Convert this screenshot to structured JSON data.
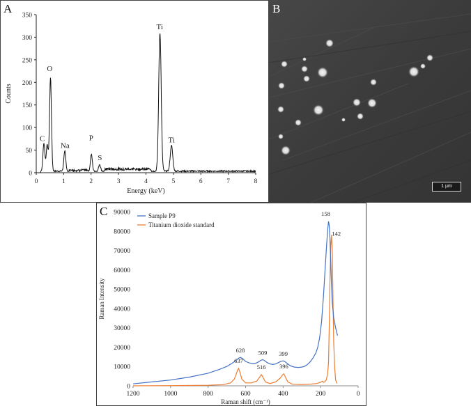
{
  "panels": {
    "a_label": "A",
    "b_label": "B",
    "c_label": "C"
  },
  "sem_image": {
    "scale_bar_label": "1 µm",
    "background_color": "#3a3a3a"
  },
  "chart_data": [
    {
      "type": "line",
      "panel": "A",
      "title": "",
      "xlabel": "Energy (keV)",
      "ylabel": "Counts",
      "xlim": [
        0,
        8
      ],
      "ylim": [
        0,
        350
      ],
      "xticks": [
        0,
        1,
        2,
        3,
        4,
        5,
        6,
        7,
        8
      ],
      "yticks": [
        0,
        50,
        100,
        150,
        200,
        250,
        300,
        350
      ],
      "grid": false,
      "line_color": "#111111",
      "peaks": [
        {
          "element": "C",
          "energy": 0.28,
          "counts": 65
        },
        {
          "element": "C",
          "energy": 0.4,
          "counts": 62
        },
        {
          "element": "O",
          "energy": 0.52,
          "counts": 210
        },
        {
          "element": "Na",
          "energy": 1.04,
          "counts": 48
        },
        {
          "element": "P",
          "energy": 2.01,
          "counts": 40
        },
        {
          "element": "S",
          "energy": 2.31,
          "counts": 18
        },
        {
          "element": "Ti",
          "energy": 4.51,
          "counts": 310
        },
        {
          "element": "Ti",
          "energy": 4.93,
          "counts": 60
        }
      ],
      "annotations": [
        {
          "text": "C",
          "x": 0.22,
          "y": 70
        },
        {
          "text": "O",
          "x": 0.49,
          "y": 225
        },
        {
          "text": "Na",
          "x": 1.05,
          "y": 55
        },
        {
          "text": "P",
          "x": 2.0,
          "y": 72
        },
        {
          "text": "S",
          "x": 2.32,
          "y": 28
        },
        {
          "text": "Ti",
          "x": 4.5,
          "y": 318
        },
        {
          "text": "Ti",
          "x": 4.93,
          "y": 67
        }
      ]
    },
    {
      "type": "line",
      "panel": "C",
      "title": "",
      "xlabel": "Raman shift (cm⁻¹)",
      "ylabel": "Raman Intensity",
      "xlim": [
        1200,
        0
      ],
      "ylim": [
        0,
        90000
      ],
      "xticks": [
        1200,
        1000,
        800,
        600,
        400,
        200,
        0
      ],
      "yticks": [
        0,
        10000,
        20000,
        30000,
        40000,
        50000,
        60000,
        70000,
        80000,
        90000
      ],
      "grid": false,
      "legend": "top-left",
      "series": [
        {
          "name": "Sample P9",
          "color": "#4472c4",
          "x": [
            1200,
            1100,
            1000,
            900,
            800,
            740,
            700,
            670,
            650,
            635,
            628,
            618,
            600,
            580,
            560,
            545,
            530,
            520,
            509,
            500,
            485,
            470,
            455,
            440,
            425,
            410,
            399,
            390,
            375,
            360,
            340,
            320,
            300,
            285,
            270,
            255,
            240,
            225,
            215,
            205,
            195,
            185,
            175,
            168,
            162,
            158,
            154,
            150,
            146,
            142,
            138,
            130,
            120,
            110
          ],
          "y": [
            1000,
            2000,
            3000,
            4500,
            6500,
            8500,
            10000,
            11800,
            13200,
            14400,
            14700,
            14200,
            12600,
            11800,
            11500,
            11700,
            12400,
            13100,
            13500,
            13100,
            12000,
            11300,
            11000,
            11300,
            12000,
            12700,
            12900,
            12500,
            11300,
            10300,
            9700,
            9500,
            9700,
            10100,
            11000,
            12500,
            14500,
            17000,
            20000,
            25000,
            33000,
            46000,
            62000,
            73000,
            81000,
            85000,
            83000,
            76000,
            64000,
            52000,
            43000,
            35000,
            30000,
            26000
          ]
        },
        {
          "name": "Titanium dioxide standard",
          "color": "#ed7d31",
          "x": [
            1200,
            1000,
            800,
            720,
            680,
            660,
            650,
            643,
            637,
            630,
            620,
            600,
            570,
            540,
            525,
            516,
            508,
            495,
            470,
            440,
            415,
            402,
            396,
            388,
            375,
            350,
            300,
            250,
            220,
            200,
            190,
            185,
            178,
            170,
            163,
            158,
            154,
            150,
            146,
            142,
            138,
            134,
            130,
            125,
            120,
            112
          ],
          "y": [
            0,
            100,
            300,
            600,
            1500,
            3500,
            6000,
            8000,
            9000,
            7000,
            3500,
            1500,
            1500,
            2500,
            4500,
            5800,
            4500,
            2000,
            1200,
            2000,
            4000,
            5800,
            6200,
            4500,
            2000,
            800,
            700,
            900,
            1200,
            1800,
            2400,
            1800,
            2100,
            3000,
            6000,
            12000,
            30000,
            55000,
            72000,
            78000,
            70000,
            45000,
            22000,
            9000,
            3000,
            1200
          ]
        }
      ],
      "peak_labels": [
        {
          "text": "628",
          "x": 628,
          "y": 14700,
          "series": "Sample P9"
        },
        {
          "text": "509",
          "x": 509,
          "y": 13500,
          "series": "Sample P9"
        },
        {
          "text": "399",
          "x": 399,
          "y": 12900,
          "series": "Sample P9"
        },
        {
          "text": "158",
          "x": 158,
          "y": 85000,
          "series": "Sample P9"
        },
        {
          "text": "637",
          "x": 637,
          "y": 9000,
          "series": "Titanium dioxide standard"
        },
        {
          "text": "516",
          "x": 516,
          "y": 5800,
          "series": "Titanium dioxide standard"
        },
        {
          "text": "396",
          "x": 396,
          "y": 6200,
          "series": "Titanium dioxide standard"
        },
        {
          "text": "142",
          "x": 142,
          "y": 78000,
          "series": "Titanium dioxide standard"
        }
      ]
    }
  ]
}
